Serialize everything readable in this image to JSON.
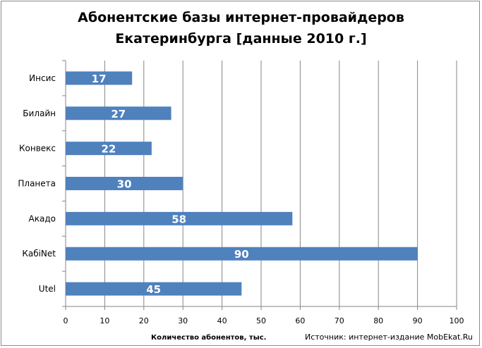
{
  "chart_data": {
    "type": "bar",
    "orientation": "horizontal",
    "title_lines": [
      "Абонентские базы интернет-провайдеров",
      "Екатеринбурга [данные 2010 г.]"
    ],
    "categories": [
      "Инсис",
      "Билайн",
      "Конвекс",
      "Планета",
      "Акадо",
      "КабiNet",
      "Utel"
    ],
    "values": [
      17,
      27,
      22,
      30,
      58,
      90,
      45
    ],
    "xlabel": "Количество абонентов, тыс.",
    "xlim": [
      0,
      100
    ],
    "xticks": [
      0,
      10,
      20,
      30,
      40,
      50,
      60,
      70,
      80,
      90,
      100
    ],
    "grid": true,
    "bar_color": "#4f81bd",
    "label_color": "#ffffff"
  },
  "source_note": "Источник: интернет-издание MobEkat.Ru"
}
